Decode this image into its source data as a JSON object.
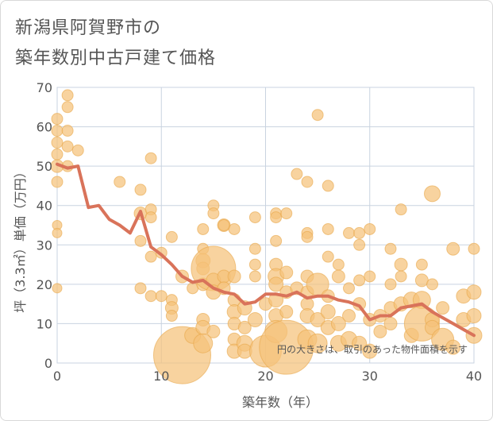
{
  "title_line1": "新潟県阿賀野市の",
  "title_line2": "築年数別中古戸建て価格",
  "note": "円の大きさは、取引のあった物件面積を示す",
  "chart_data": {
    "type": "scatter",
    "xlabel": "築年数（年）",
    "ylabel": "坪（3.3㎡）単価（万円）",
    "xlim": [
      0,
      40
    ],
    "ylim": [
      0,
      70
    ],
    "xticks": [
      0,
      10,
      20,
      30,
      40
    ],
    "yticks": [
      0,
      10,
      20,
      30,
      40,
      50,
      60,
      70
    ],
    "grid": true,
    "colors": {
      "bubble": "#f5c27a",
      "bubble_stroke": "#e8a74a",
      "line": "#d9735a"
    },
    "bubbles": [
      {
        "x": 0,
        "y": 62,
        "s": 7
      },
      {
        "x": 0,
        "y": 59,
        "s": 7
      },
      {
        "x": 0,
        "y": 56,
        "s": 7
      },
      {
        "x": 0,
        "y": 53,
        "s": 7
      },
      {
        "x": 0,
        "y": 50,
        "s": 8
      },
      {
        "x": 0,
        "y": 46,
        "s": 7
      },
      {
        "x": 0,
        "y": 35,
        "s": 6
      },
      {
        "x": 0,
        "y": 33,
        "s": 6
      },
      {
        "x": 0,
        "y": 19,
        "s": 6
      },
      {
        "x": 1,
        "y": 68,
        "s": 7
      },
      {
        "x": 1,
        "y": 65,
        "s": 7
      },
      {
        "x": 1,
        "y": 59,
        "s": 7
      },
      {
        "x": 1,
        "y": 55,
        "s": 7
      },
      {
        "x": 1,
        "y": 50,
        "s": 7
      },
      {
        "x": 2,
        "y": 54,
        "s": 7
      },
      {
        "x": 6,
        "y": 46,
        "s": 7
      },
      {
        "x": 8,
        "y": 44,
        "s": 7
      },
      {
        "x": 8,
        "y": 38,
        "s": 8
      },
      {
        "x": 8,
        "y": 31,
        "s": 7
      },
      {
        "x": 8,
        "y": 19,
        "s": 7
      },
      {
        "x": 9,
        "y": 52,
        "s": 7
      },
      {
        "x": 9,
        "y": 39,
        "s": 7
      },
      {
        "x": 9,
        "y": 37,
        "s": 7
      },
      {
        "x": 9,
        "y": 27,
        "s": 7
      },
      {
        "x": 9,
        "y": 17,
        "s": 7
      },
      {
        "x": 10,
        "y": 28,
        "s": 7
      },
      {
        "x": 10,
        "y": 17,
        "s": 7
      },
      {
        "x": 11,
        "y": 32,
        "s": 7
      },
      {
        "x": 11,
        "y": 16,
        "s": 7
      },
      {
        "x": 11,
        "y": 14,
        "s": 8
      },
      {
        "x": 11,
        "y": 12,
        "s": 7
      },
      {
        "x": 12,
        "y": 22,
        "s": 8
      },
      {
        "x": 12,
        "y": 2,
        "s": 36
      },
      {
        "x": 13,
        "y": 7,
        "s": 10
      },
      {
        "x": 13,
        "y": 19,
        "s": 7
      },
      {
        "x": 14,
        "y": 34,
        "s": 7
      },
      {
        "x": 14,
        "y": 29,
        "s": 7
      },
      {
        "x": 14,
        "y": 26,
        "s": 9
      },
      {
        "x": 14,
        "y": 24,
        "s": 8
      },
      {
        "x": 14,
        "y": 20,
        "s": 8
      },
      {
        "x": 14,
        "y": 11,
        "s": 8
      },
      {
        "x": 14,
        "y": 9,
        "s": 9
      },
      {
        "x": 14,
        "y": 5,
        "s": 12
      },
      {
        "x": 15,
        "y": 40,
        "s": 7
      },
      {
        "x": 15,
        "y": 38,
        "s": 7
      },
      {
        "x": 15,
        "y": 24,
        "s": 28
      },
      {
        "x": 15,
        "y": 21,
        "s": 9
      },
      {
        "x": 15,
        "y": 18,
        "s": 9
      },
      {
        "x": 15,
        "y": 8,
        "s": 8
      },
      {
        "x": 16,
        "y": 35,
        "s": 8
      },
      {
        "x": 16,
        "y": 35,
        "s": 7
      },
      {
        "x": 16,
        "y": 22,
        "s": 8
      },
      {
        "x": 16,
        "y": 19,
        "s": 8
      },
      {
        "x": 17,
        "y": 34,
        "s": 7
      },
      {
        "x": 17,
        "y": 22,
        "s": 8
      },
      {
        "x": 17,
        "y": 16,
        "s": 8
      },
      {
        "x": 17,
        "y": 13,
        "s": 9
      },
      {
        "x": 17,
        "y": 10,
        "s": 8
      },
      {
        "x": 17,
        "y": 6,
        "s": 8
      },
      {
        "x": 17,
        "y": 3,
        "s": 9
      },
      {
        "x": 18,
        "y": 14,
        "s": 9
      },
      {
        "x": 18,
        "y": 9,
        "s": 8
      },
      {
        "x": 18,
        "y": 5,
        "s": 10
      },
      {
        "x": 18,
        "y": 3,
        "s": 9
      },
      {
        "x": 19,
        "y": 37,
        "s": 7
      },
      {
        "x": 19,
        "y": 29,
        "s": 7
      },
      {
        "x": 19,
        "y": 25,
        "s": 7
      },
      {
        "x": 19,
        "y": 22,
        "s": 7
      },
      {
        "x": 19,
        "y": 11,
        "s": 9
      },
      {
        "x": 20,
        "y": 15,
        "s": 8
      },
      {
        "x": 20,
        "y": 3,
        "s": 20
      },
      {
        "x": 21,
        "y": 38,
        "s": 7
      },
      {
        "x": 21,
        "y": 37,
        "s": 7
      },
      {
        "x": 21,
        "y": 31,
        "s": 7
      },
      {
        "x": 21,
        "y": 25,
        "s": 8
      },
      {
        "x": 21,
        "y": 22,
        "s": 10
      },
      {
        "x": 21,
        "y": 20,
        "s": 9
      },
      {
        "x": 21,
        "y": 16,
        "s": 9
      },
      {
        "x": 21,
        "y": 12,
        "s": 9
      },
      {
        "x": 21,
        "y": 8,
        "s": 14
      },
      {
        "x": 22,
        "y": 38,
        "s": 7
      },
      {
        "x": 22,
        "y": 23,
        "s": 8
      },
      {
        "x": 22,
        "y": 18,
        "s": 8
      },
      {
        "x": 22,
        "y": 13,
        "s": 8
      },
      {
        "x": 22,
        "y": 4,
        "s": 34
      },
      {
        "x": 23,
        "y": 48,
        "s": 7
      },
      {
        "x": 23,
        "y": 19,
        "s": 8
      },
      {
        "x": 24,
        "y": 46,
        "s": 7
      },
      {
        "x": 24,
        "y": 33,
        "s": 7
      },
      {
        "x": 24,
        "y": 32,
        "s": 7
      },
      {
        "x": 24,
        "y": 22,
        "s": 8
      },
      {
        "x": 24,
        "y": 18,
        "s": 8
      },
      {
        "x": 24,
        "y": 15,
        "s": 8
      },
      {
        "x": 24,
        "y": 12,
        "s": 9
      },
      {
        "x": 24,
        "y": 6,
        "s": 12
      },
      {
        "x": 25,
        "y": 63,
        "s": 7
      },
      {
        "x": 25,
        "y": 20,
        "s": 14
      },
      {
        "x": 25,
        "y": 11,
        "s": 9
      },
      {
        "x": 25,
        "y": 5,
        "s": 12
      },
      {
        "x": 26,
        "y": 45,
        "s": 7
      },
      {
        "x": 26,
        "y": 34,
        "s": 7
      },
      {
        "x": 26,
        "y": 27,
        "s": 7
      },
      {
        "x": 26,
        "y": 17,
        "s": 8
      },
      {
        "x": 26,
        "y": 13,
        "s": 9
      },
      {
        "x": 26,
        "y": 9,
        "s": 9
      },
      {
        "x": 27,
        "y": 25,
        "s": 7
      },
      {
        "x": 27,
        "y": 22,
        "s": 8
      },
      {
        "x": 27,
        "y": 10,
        "s": 9
      },
      {
        "x": 27,
        "y": 5,
        "s": 10
      },
      {
        "x": 28,
        "y": 33,
        "s": 7
      },
      {
        "x": 28,
        "y": 19,
        "s": 7
      },
      {
        "x": 28,
        "y": 12,
        "s": 8
      },
      {
        "x": 28,
        "y": 6,
        "s": 10
      },
      {
        "x": 29,
        "y": 33,
        "s": 7
      },
      {
        "x": 29,
        "y": 30,
        "s": 7
      },
      {
        "x": 29,
        "y": 21,
        "s": 7
      },
      {
        "x": 29,
        "y": 15,
        "s": 8
      },
      {
        "x": 29,
        "y": 5,
        "s": 9
      },
      {
        "x": 30,
        "y": 34,
        "s": 7
      },
      {
        "x": 30,
        "y": 22,
        "s": 7
      },
      {
        "x": 30,
        "y": 11,
        "s": 8
      },
      {
        "x": 30,
        "y": 3,
        "s": 9
      },
      {
        "x": 31,
        "y": 12,
        "s": 8
      },
      {
        "x": 31,
        "y": 8,
        "s": 8
      },
      {
        "x": 32,
        "y": 29,
        "s": 7
      },
      {
        "x": 32,
        "y": 20,
        "s": 7
      },
      {
        "x": 32,
        "y": 14,
        "s": 8
      },
      {
        "x": 32,
        "y": 10,
        "s": 8
      },
      {
        "x": 33,
        "y": 39,
        "s": 7
      },
      {
        "x": 33,
        "y": 25,
        "s": 8
      },
      {
        "x": 33,
        "y": 22,
        "s": 7
      },
      {
        "x": 33,
        "y": 15,
        "s": 9
      },
      {
        "x": 34,
        "y": 16,
        "s": 10
      },
      {
        "x": 34,
        "y": 7,
        "s": 9
      },
      {
        "x": 35,
        "y": 25,
        "s": 7
      },
      {
        "x": 35,
        "y": 21,
        "s": 8
      },
      {
        "x": 35,
        "y": 16,
        "s": 11
      },
      {
        "x": 35,
        "y": 10,
        "s": 22
      },
      {
        "x": 36,
        "y": 43,
        "s": 10
      },
      {
        "x": 36,
        "y": 20,
        "s": 7
      },
      {
        "x": 36,
        "y": 11,
        "s": 9
      },
      {
        "x": 36,
        "y": 9,
        "s": 9
      },
      {
        "x": 37,
        "y": 14,
        "s": 8
      },
      {
        "x": 37,
        "y": 6,
        "s": 14
      },
      {
        "x": 38,
        "y": 29,
        "s": 8
      },
      {
        "x": 38,
        "y": 4,
        "s": 9
      },
      {
        "x": 39,
        "y": 17,
        "s": 9
      },
      {
        "x": 39,
        "y": 11,
        "s": 9
      },
      {
        "x": 40,
        "y": 29,
        "s": 7
      },
      {
        "x": 40,
        "y": 18,
        "s": 9
      },
      {
        "x": 40,
        "y": 12,
        "s": 9
      },
      {
        "x": 40,
        "y": 7,
        "s": 10
      }
    ],
    "trend": {
      "x": [
        0,
        1,
        2,
        3,
        4,
        5,
        6,
        7,
        8,
        9,
        10,
        11,
        12,
        13,
        14,
        15,
        16,
        17,
        18,
        19,
        20,
        21,
        22,
        23,
        24,
        25,
        26,
        27,
        28,
        29,
        30,
        31,
        32,
        33,
        34,
        35,
        36,
        37,
        38,
        39,
        40
      ],
      "y": [
        50.5,
        49.5,
        50,
        39.5,
        40,
        36.5,
        35,
        33,
        38.5,
        29.5,
        27.5,
        25,
        22,
        20.5,
        21,
        19,
        18,
        17.5,
        15,
        15.5,
        17.5,
        17.5,
        17,
        18,
        16.5,
        17,
        17,
        16,
        15.5,
        14.5,
        11,
        12,
        12,
        14,
        14.5,
        15,
        13,
        11.5,
        10,
        8.5,
        7
      ]
    }
  }
}
